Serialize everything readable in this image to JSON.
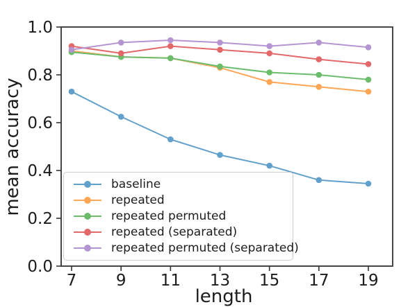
{
  "figure": {
    "background_color": "#ffffff",
    "frame_color": "#333333",
    "tick_label_color": "#1c1c1c"
  },
  "chart_data": {
    "type": "line",
    "title": "",
    "xlabel": "length",
    "ylabel": "mean accuracy",
    "x": [
      7,
      9,
      11,
      13,
      15,
      17,
      19
    ],
    "x_tick_labels": [
      "7",
      "9",
      "11",
      "13",
      "15",
      "17",
      "19"
    ],
    "y_ticks": [
      0.0,
      0.2,
      0.4,
      0.6,
      0.8,
      1.0
    ],
    "y_tick_labels": [
      "0.0",
      "0.2",
      "0.4",
      "0.6",
      "0.8",
      "1.0"
    ],
    "xlim": [
      6.58,
      20.0
    ],
    "ylim": [
      0.0,
      1.0
    ],
    "grid": false,
    "legend_position": "lower left",
    "marker": "circle",
    "series": [
      {
        "name": "baseline",
        "color": "#61a0cb",
        "values": [
          0.73,
          0.625,
          0.53,
          0.465,
          0.42,
          0.36,
          0.345
        ]
      },
      {
        "name": "repeated",
        "color": "#ffa556",
        "values": [
          0.9,
          0.875,
          0.87,
          0.83,
          0.77,
          0.75,
          0.73
        ]
      },
      {
        "name": "repeated permuted",
        "color": "#6bbc6b",
        "values": [
          0.895,
          0.875,
          0.87,
          0.835,
          0.81,
          0.8,
          0.78
        ]
      },
      {
        "name": "repeated (separated)",
        "color": "#e26869",
        "values": [
          0.92,
          0.89,
          0.92,
          0.905,
          0.89,
          0.865,
          0.845
        ]
      },
      {
        "name": "repeated permuted (separated)",
        "color": "#b495d1",
        "values": [
          0.905,
          0.935,
          0.945,
          0.935,
          0.92,
          0.935,
          0.915
        ]
      }
    ]
  }
}
